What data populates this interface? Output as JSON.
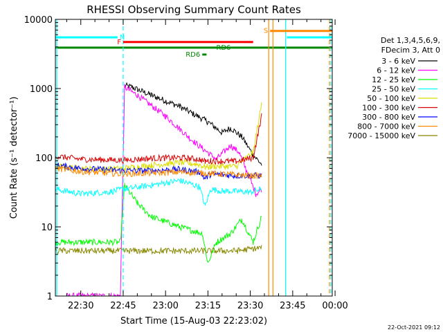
{
  "chart_data": {
    "type": "line",
    "title": "RHESSI Observing Summary Count Rates",
    "ylabel": "Count Rate (s⁻¹ detector⁻¹)",
    "xlabel": "Start Time (15-Aug-03 22:23:02)",
    "footer": "22-Oct-2021 09:12",
    "yscale": "log",
    "ylim": [
      1,
      10000
    ],
    "xlim_minutes": [
      -24,
      74
    ],
    "y_ticks": [
      {
        "value": 1,
        "label": "1"
      },
      {
        "value": 10,
        "label": "10"
      },
      {
        "value": 100,
        "label": "100"
      },
      {
        "value": 1000,
        "label": "1000"
      },
      {
        "value": 10000,
        "label": "10000"
      }
    ],
    "x_ticks": [
      {
        "value": -15,
        "label": "22:30"
      },
      {
        "value": 0,
        "label": "22:45"
      },
      {
        "value": 15,
        "label": "23:00"
      },
      {
        "value": 30,
        "label": "23:15"
      },
      {
        "value": 45,
        "label": "23:30"
      },
      {
        "value": 60,
        "label": "23:45"
      },
      {
        "value": 75,
        "label": "00:00"
      }
    ],
    "legend_title": [
      "Det 1,3,4,5,6,9,",
      "FDecim 3, Att 0"
    ],
    "series": [
      {
        "name": "3 - 6 keV",
        "color": "#000000",
        "x": [
          -20,
          -10,
          -1,
          0.5,
          3,
          10,
          20,
          30,
          35,
          38,
          42,
          46,
          49
        ],
        "y": [
          null,
          null,
          null,
          1100,
          1050,
          800,
          550,
          330,
          230,
          270,
          200,
          110,
          80
        ]
      },
      {
        "name": "6 - 12 keV",
        "color": "#ff00ff",
        "x": [
          -20,
          -5,
          -1,
          0.5,
          5,
          15,
          25,
          33,
          38,
          41,
          44,
          47,
          49
        ],
        "y": [
          1,
          1,
          1,
          1050,
          800,
          400,
          170,
          95,
          150,
          120,
          60,
          30,
          35
        ]
      },
      {
        "name": "12 - 25 keV",
        "color": "#00ff00",
        "x": [
          -24,
          -15,
          -1,
          0.5,
          5,
          10,
          20,
          28,
          30,
          33,
          38,
          42,
          46,
          49
        ],
        "y": [
          6,
          6,
          6,
          40,
          22,
          14,
          10,
          8,
          3,
          6,
          8,
          13,
          6,
          14
        ]
      },
      {
        "name": "25 - 50 keV",
        "color": "#00ffff",
        "x": [
          -24,
          -15,
          -5,
          0,
          10,
          20,
          27,
          29,
          31,
          35,
          45,
          49
        ],
        "y": [
          35,
          30,
          32,
          35,
          40,
          47,
          38,
          20,
          35,
          33,
          32,
          35
        ]
      },
      {
        "name": "50 - 100 keV",
        "color": "#dddd00",
        "x": [
          -24,
          -10,
          0,
          10,
          20,
          27,
          29,
          31,
          40,
          46,
          49
        ],
        "y": [
          75,
          68,
          70,
          78,
          85,
          80,
          72,
          75,
          75,
          120,
          600
        ]
      },
      {
        "name": "100 - 300 keV",
        "color": "#dd0000",
        "x": [
          -24,
          -15,
          0,
          10,
          20,
          27,
          29,
          31,
          40,
          46,
          49
        ],
        "y": [
          105,
          95,
          92,
          98,
          100,
          95,
          88,
          90,
          88,
          100,
          400
        ]
      },
      {
        "name": "300 - 800 keV",
        "color": "#0000ff",
        "x": [
          -24,
          -15,
          0,
          10,
          20,
          27,
          29,
          31,
          40,
          46,
          49
        ],
        "y": [
          78,
          70,
          65,
          65,
          68,
          62,
          50,
          58,
          55,
          55,
          55
        ]
      },
      {
        "name": "800 - 7000 keV",
        "color": "#ff8800",
        "x": [
          -24,
          -15,
          0,
          10,
          20,
          28,
          35,
          45,
          49
        ],
        "y": [
          70,
          63,
          58,
          60,
          62,
          60,
          58,
          55,
          55
        ]
      },
      {
        "name": "7000 - 15000 keV",
        "color": "#888800",
        "x": [
          -24,
          -10,
          0,
          20,
          40,
          49
        ],
        "y": [
          4.5,
          4.5,
          4.5,
          4.5,
          4.5,
          5
        ]
      }
    ],
    "annotations": [
      {
        "label": "N",
        "color": "#00ffff",
        "y": 5500,
        "x_start": -24,
        "x_end": -2,
        "label_at": "end"
      },
      {
        "label": "N",
        "color": "#00ffff",
        "y": 5500,
        "x_start": 58,
        "x_end": 74,
        "label_at": "none"
      },
      {
        "label": "F",
        "color": "#ff0000",
        "y": 4700,
        "x_start": 0,
        "x_end": 46,
        "label_at": "start"
      },
      {
        "label": "S",
        "color": "#ff8800",
        "y": 6800,
        "x_start": 52,
        "x_end": 74,
        "label_at": "start"
      },
      {
        "label": "RD6",
        "color": "#008800",
        "y": 3100,
        "x_start": 28,
        "x_end": 29.5,
        "label_at": "start"
      },
      {
        "label": "RD6",
        "color": "#008800",
        "y": 3900,
        "x_start": 32,
        "x_end": 32.2,
        "label_at": "end"
      }
    ],
    "flare_level_line": {
      "y": 3900,
      "color": "#008800"
    },
    "vertical_markers": [
      {
        "x": -23.5,
        "color": "#00ffff",
        "style": "solid"
      },
      {
        "x": 0,
        "color": "#00ffff",
        "style": "dashed"
      },
      {
        "x": 51.5,
        "color": "#ff8800",
        "style": "solid"
      },
      {
        "x": 53,
        "color": "#ff8800",
        "style": "solid"
      },
      {
        "x": 57.5,
        "color": "#00ffff",
        "style": "solid"
      },
      {
        "x": 73,
        "color": "#ff8800",
        "style": "dashed"
      },
      {
        "x": 73.5,
        "color": "#00ffff",
        "style": "dashed"
      }
    ]
  }
}
